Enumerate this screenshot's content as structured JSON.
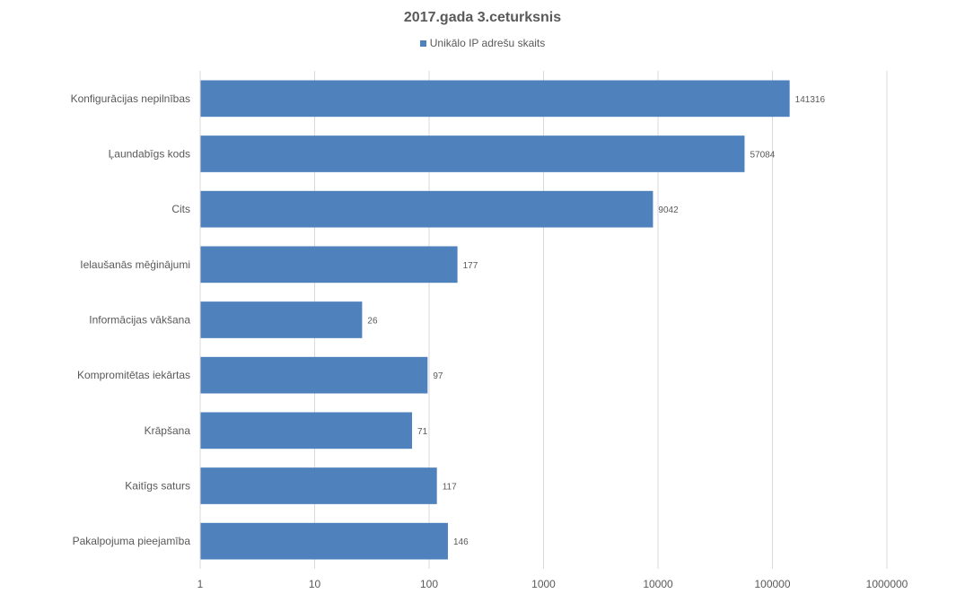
{
  "chart_data": {
    "type": "bar",
    "orientation": "horizontal",
    "title": "2017.gada 3.ceturksnis",
    "xscale": "log",
    "xlim": [
      1,
      1000000
    ],
    "xticks": [
      "1",
      "10",
      "100",
      "1000",
      "10000",
      "100000",
      "1000000"
    ],
    "grid": true,
    "legend_position": "top-center",
    "categories": [
      "Konfigurācijas nepilnības",
      "Ļaundabīgs kods",
      "Cits",
      "Ielaušanās mēģinājumi",
      "Informācijas vākšana",
      "Kompromitētas iekārtas",
      "Krāpšana",
      "Kaitīgs saturs",
      "Pakalpojuma pieejamība"
    ],
    "series": [
      {
        "name": "Unikālo IP adrešu skaits",
        "color": "#4f81bd",
        "values": [
          141316,
          57084,
          9042,
          177,
          26,
          97,
          71,
          117,
          146
        ]
      }
    ]
  }
}
